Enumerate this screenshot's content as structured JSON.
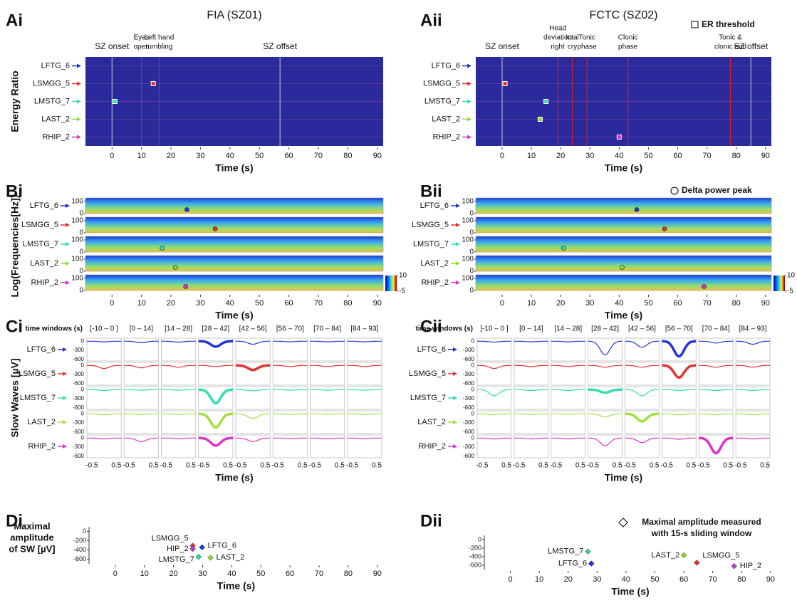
{
  "chart_data": [
    {
      "panel": "Ai",
      "type": "heatmap",
      "title": "FIA (SZ01)",
      "ylabel": "Energy Ratio",
      "xlabel": "Time (s)",
      "xlim": [
        -9,
        92
      ],
      "xticks": [
        0,
        10,
        20,
        30,
        40,
        50,
        60,
        70,
        80,
        90
      ],
      "channels": [
        "LFTG_6",
        "LSMGG_5",
        "LMSTG_7",
        "LAST_2",
        "RHIP_2"
      ],
      "colors": [
        "#2233dd",
        "#e53030",
        "#30e0b0",
        "#90e030",
        "#e030c8"
      ],
      "threshold": [
        null,
        14,
        1,
        null,
        null
      ],
      "events": [
        {
          "label": [
            "SZ onset"
          ],
          "time": 0,
          "color": "#000000"
        },
        {
          "label": [
            "Eyes",
            "open"
          ],
          "time": 10,
          "color": "#e02020"
        },
        {
          "label": [
            "Left hand",
            "tumbling"
          ],
          "time": 16,
          "color": "#e02020"
        },
        {
          "label": [
            "SZ offset"
          ],
          "time": 57,
          "color": "#000000"
        }
      ]
    },
    {
      "panel": "Aii",
      "type": "heatmap",
      "title": "FCTC (SZ02)",
      "xlabel": "Time (s)",
      "legend": "ER threshold",
      "xlim": [
        -9,
        92
      ],
      "xticks": [
        0,
        10,
        20,
        30,
        40,
        50,
        60,
        70,
        80,
        90
      ],
      "channels": [
        "LFTG_6",
        "LSMGG_5",
        "LMSTG_7",
        "LAST_2",
        "RHIP_2"
      ],
      "colors": [
        "#2233dd",
        "#e53030",
        "#30e0b0",
        "#90e030",
        "#e030c8"
      ],
      "threshold": [
        null,
        1,
        15,
        13,
        40
      ],
      "events": [
        {
          "label": [
            "SZ onset"
          ],
          "time": 0,
          "color": "#000000"
        },
        {
          "label": [
            "Head",
            "deviation",
            "right"
          ],
          "time": 19,
          "color": "#e02020"
        },
        {
          "label": [
            "Ictal",
            "cry"
          ],
          "time": 24,
          "color": "#e02020"
        },
        {
          "label": [
            "Tonic",
            "phase"
          ],
          "time": 29,
          "color": "#e02020"
        },
        {
          "label": [
            "Clonic",
            "phase"
          ],
          "time": 43,
          "color": "#e02020"
        },
        {
          "label": [
            "Tonic &",
            "clonic end"
          ],
          "time": 78,
          "color": "#e02020"
        },
        {
          "label": [
            "SZ offset"
          ],
          "time": 85,
          "color": "#000000"
        }
      ]
    },
    {
      "panel": "Bi",
      "type": "spectrogram",
      "ylabel": "Log(Frequencies[Hz])",
      "xlabel": "Time (s)",
      "xlim": [
        -9,
        92
      ],
      "xticks": [
        0,
        10,
        20,
        30,
        40,
        50,
        60,
        70,
        80,
        90
      ],
      "ylim": [
        0,
        130
      ],
      "yticks": [
        0,
        100
      ],
      "clim": [
        -5,
        10
      ],
      "colorbar_ticks": [
        10,
        -5
      ],
      "channels": [
        "LFTG_6",
        "LSMGG_5",
        "LMSTG_7",
        "LAST_2",
        "RHIP_2"
      ],
      "colors": [
        "#2233dd",
        "#e53030",
        "#30e0b0",
        "#90e030",
        "#e030c8"
      ],
      "peaks": [
        25.4,
        35,
        17,
        21.5,
        25
      ]
    },
    {
      "panel": "Bii",
      "type": "spectrogram",
      "xlabel": "Time (s)",
      "legend": "Delta power peak",
      "xlim": [
        -9,
        92
      ],
      "xticks": [
        0,
        10,
        20,
        30,
        40,
        50,
        60,
        70,
        80,
        90
      ],
      "ylim": [
        0,
        130
      ],
      "yticks": [
        0,
        100
      ],
      "clim": [
        -5,
        10
      ],
      "colorbar_ticks": [
        10,
        -5
      ],
      "channels": [
        "LFTG_6",
        "LSMGG_5",
        "LMSTG_7",
        "LAST_2",
        "RHIP_2"
      ],
      "colors": [
        "#2233dd",
        "#e53030",
        "#30e0b0",
        "#90e030",
        "#e030c8"
      ],
      "peaks": [
        46,
        55.5,
        21,
        41,
        69
      ]
    },
    {
      "panel": "Ci",
      "type": "waveform-grid",
      "ylabel": "Slow Waves [µV]",
      "xlabel": "Time (s)",
      "column_title": "time windows (s)",
      "windows": [
        "[-10 – 0 ]",
        "[0 – 14]",
        "[14 – 28]",
        "[28 – 42]",
        "[42 – 56]",
        "[56 – 70]",
        "[70 – 84]",
        "[84 – 93]"
      ],
      "xlim": [
        -0.7,
        0.7
      ],
      "xticks": [
        -0.5,
        0.5
      ],
      "ylim": [
        -650,
        100
      ],
      "yticks": [
        0,
        -300,
        -600
      ],
      "series": [
        {
          "name": "LFTG_6",
          "color": "#2233dd",
          "highlight": 3,
          "values": [
            -20,
            -50,
            -30,
            -180,
            -100,
            -20,
            -20,
            -20
          ]
        },
        {
          "name": "LSMGG_5",
          "color": "#e53030",
          "highlight": 4,
          "values": [
            -100,
            -80,
            -60,
            -40,
            -150,
            -40,
            -40,
            -40
          ]
        },
        {
          "name": "LMSTG_7",
          "color": "#30e0b0",
          "highlight": 3,
          "values": [
            -30,
            -20,
            -20,
            -450,
            -40,
            -20,
            -20,
            -20
          ]
        },
        {
          "name": "LAST_2",
          "color": "#a0e040",
          "highlight": 3,
          "values": [
            -30,
            -20,
            -20,
            -450,
            -150,
            -20,
            -20,
            -20
          ]
        },
        {
          "name": "RHIP_2",
          "color": "#e030c8",
          "highlight": 3,
          "values": [
            -30,
            -120,
            -20,
            -250,
            -120,
            -20,
            -20,
            -20
          ]
        }
      ]
    },
    {
      "panel": "Cii",
      "type": "waveform-grid",
      "xlabel": "Time (s)",
      "column_title": "time windows (s)",
      "windows": [
        "[-10 – 0 ]",
        "[0 – 14]",
        "[14 – 28]",
        "[28 – 42]",
        "[42 – 56]",
        "[56 – 70]",
        "[70 – 84]",
        "[84 – 93]"
      ],
      "xlim": [
        -0.7,
        0.7
      ],
      "xticks": [
        -0.5,
        0.5
      ],
      "ylim": [
        -650,
        100
      ],
      "yticks": [
        0,
        -300,
        -600
      ],
      "series": [
        {
          "name": "LFTG_6",
          "color": "#2233dd",
          "highlight": 5,
          "values": [
            -30,
            -20,
            -20,
            -450,
            -200,
            -500,
            -60,
            -100
          ]
        },
        {
          "name": "LSMGG_5",
          "color": "#e53030",
          "highlight": 5,
          "values": [
            -100,
            -40,
            -40,
            -60,
            -60,
            -400,
            -60,
            -60
          ]
        },
        {
          "name": "LMSTG_7",
          "color": "#30e0b0",
          "highlight": 3,
          "values": [
            -200,
            -30,
            -30,
            -100,
            -200,
            -30,
            -30,
            -30
          ]
        },
        {
          "name": "LAST_2",
          "color": "#a0e040",
          "highlight": 4,
          "values": [
            -30,
            -20,
            -20,
            -100,
            -250,
            -30,
            -30,
            -30
          ]
        },
        {
          "name": "RHIP_2",
          "color": "#e030c8",
          "highlight": 6,
          "values": [
            -30,
            -30,
            -30,
            -250,
            -150,
            -40,
            -500,
            -30
          ]
        }
      ]
    },
    {
      "panel": "Di",
      "type": "scatter",
      "ylabel": [
        "Maximal",
        "amplitude",
        "of SW [µV]"
      ],
      "xlabel": "Time (s)",
      "xlim": [
        -9,
        92
      ],
      "xticks": [
        0,
        10,
        20,
        30,
        40,
        50,
        60,
        70,
        80,
        90
      ],
      "ylim": [
        -700,
        100
      ],
      "yticks": [
        0,
        -200,
        -400,
        -600
      ],
      "series": [
        {
          "name": "LSMGG_5",
          "color": "#e53030",
          "x": [
            26.6
          ],
          "values": [
            -309
          ]
        },
        {
          "name": "HIP_2",
          "color": "#b040c8",
          "x": [
            26.6
          ],
          "values": [
            -377
          ]
        },
        {
          "name": "LFTG_6",
          "color": "#2233dd",
          "x": [
            29.8
          ],
          "values": [
            -343
          ]
        },
        {
          "name": "LMSTG_7",
          "color": "#30d0a0",
          "x": [
            28.6
          ],
          "values": [
            -549
          ]
        },
        {
          "name": "LAST_2",
          "color": "#90d030",
          "x": [
            32.7
          ],
          "values": [
            -566
          ]
        }
      ]
    },
    {
      "panel": "Dii",
      "type": "scatter",
      "xlabel": "Time (s)",
      "legend": [
        "Maximal amplitude measured",
        "with 15-s sliding window"
      ],
      "xlim": [
        -9,
        92
      ],
      "xticks": [
        0,
        10,
        20,
        30,
        40,
        50,
        60,
        70,
        80,
        90
      ],
      "ylim": [
        -700,
        100
      ],
      "yticks": [
        0,
        -200,
        -400,
        -600
      ],
      "series": [
        {
          "name": "LMSTG_7",
          "color": "#30d0a0",
          "x": [
            26.8
          ],
          "values": [
            -280
          ]
        },
        {
          "name": "LFTG_6",
          "color": "#2233dd",
          "x": [
            28
          ],
          "values": [
            -560
          ]
        },
        {
          "name": "LAST_2",
          "color": "#90d030",
          "x": [
            60
          ],
          "values": [
            -365
          ]
        },
        {
          "name": "LSMGG_5",
          "color": "#e53030",
          "x": [
            64.5
          ],
          "values": [
            -540
          ]
        },
        {
          "name": "HIP_2",
          "color": "#b040c8",
          "x": [
            77.4
          ],
          "values": [
            -620
          ]
        }
      ]
    }
  ]
}
